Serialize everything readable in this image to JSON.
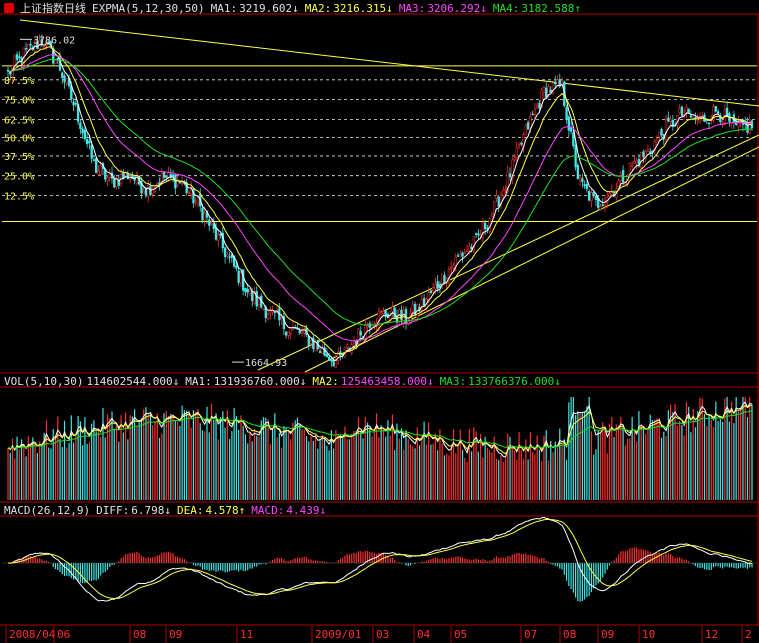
{
  "header": {
    "index_name": "上证指数",
    "period": "日线",
    "indicator": "EXPMA(5,12,30,50)",
    "ma1_label": "MA1:",
    "ma1_value": "3219.602↓",
    "ma2_label": "MA2:",
    "ma2_value": "3216.315↓",
    "ma3_label": "MA3:",
    "ma3_value": "3206.292↓",
    "ma4_label": "MA4:",
    "ma4_value": "3182.588↑"
  },
  "volume": {
    "indicator": "VOL(5,10,30)",
    "value": "114602544.000↓",
    "ma1_label": "MA1:",
    "ma1_value": "131936760.000↓",
    "ma2_label": "MA2:",
    "ma2_value": "125463458.000↓",
    "ma3_label": "MA3:",
    "ma3_value": "133766376.000↓"
  },
  "macd": {
    "indicator": "MACD(26,12,9)",
    "diff_label": "DIFF:",
    "diff_value": "6.798↓",
    "dea_label": "DEA:",
    "dea_value": "4.578↑",
    "macd_label": "MACD:",
    "macd_value": "4.439↓"
  },
  "chart_data": {
    "type": "candlestick",
    "price_ylim": [
      1600,
      3900
    ],
    "high_label": "3786.02",
    "low_label": "1664.93",
    "fib_levels": [
      {
        "label": "87.5%",
        "value": 3520
      },
      {
        "label": "75.0%",
        "value": 3390
      },
      {
        "label": "62.5%",
        "value": 3260
      },
      {
        "label": "50.0%",
        "value": 3140
      },
      {
        "label": "37.5%",
        "value": 3020
      },
      {
        "label": "25.0%",
        "value": 2890
      },
      {
        "label": "12.5%",
        "value": 2760
      }
    ],
    "x_labels": [
      "2008/04",
      "06",
      "08",
      "09",
      "11",
      "2009/01",
      "03",
      "04",
      "05",
      "07",
      "08",
      "09",
      "10",
      "12",
      "2"
    ],
    "close_path": [
      3560,
      3700,
      3786,
      3600,
      3300,
      2950,
      2850,
      2900,
      2800,
      2880,
      2850,
      2700,
      2500,
      2300,
      2100,
      2000,
      1900,
      1850,
      1750,
      1665,
      1800,
      1950,
      1990,
      1950,
      2050,
      2200,
      2350,
      2450,
      2650,
      2900,
      3200,
      3450,
      3478,
      2850,
      2700,
      2800,
      2950,
      3050,
      3200,
      3300,
      3250,
      3320,
      3200,
      3220
    ]
  }
}
